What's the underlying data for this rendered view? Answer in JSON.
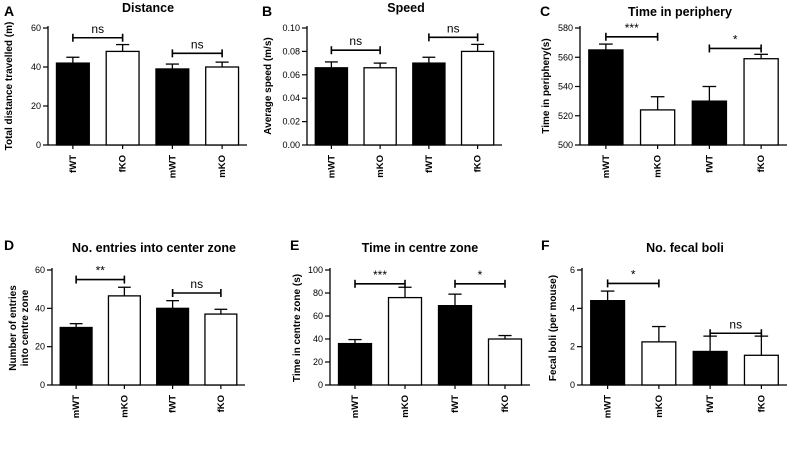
{
  "chart_data": [
    {
      "id": "A",
      "type": "bar",
      "panel_label": "A",
      "title": "Distance",
      "ylabel": "Total distance travelled (m)",
      "ylim": [
        0,
        60
      ],
      "yticks": [
        0,
        20,
        40,
        60
      ],
      "categories": [
        "fWT",
        "fKO",
        "mWT",
        "mKO"
      ],
      "values": [
        42,
        48,
        39,
        40
      ],
      "errors": [
        3,
        3.5,
        2.5,
        2.5
      ],
      "fills": [
        "#000000",
        "#ffffff",
        "#000000",
        "#ffffff"
      ],
      "comparisons": [
        {
          "from": 0,
          "to": 1,
          "y": 55,
          "label": "ns"
        },
        {
          "from": 2,
          "to": 3,
          "y": 47,
          "label": "ns"
        }
      ]
    },
    {
      "id": "B",
      "type": "bar",
      "panel_label": "B",
      "title": "Speed",
      "ylabel": "Average speed (m/s)",
      "ylim": [
        0,
        0.1
      ],
      "yticks": [
        0,
        0.02,
        0.04,
        0.06,
        0.08,
        0.1
      ],
      "tick_decimals": 2,
      "categories": [
        "mWT",
        "mKO",
        "fWT",
        "fKO"
      ],
      "values": [
        0.066,
        0.066,
        0.07,
        0.08
      ],
      "errors": [
        0.005,
        0.004,
        0.005,
        0.006
      ],
      "fills": [
        "#000000",
        "#ffffff",
        "#000000",
        "#ffffff"
      ],
      "comparisons": [
        {
          "from": 0,
          "to": 1,
          "y": 0.081,
          "label": "ns"
        },
        {
          "from": 2,
          "to": 3,
          "y": 0.092,
          "label": "ns"
        }
      ]
    },
    {
      "id": "C",
      "type": "bar",
      "panel_label": "C",
      "title": "Time in periphery",
      "ylabel": "Time in periphery(s)",
      "ylim": [
        500,
        580
      ],
      "yticks": [
        500,
        520,
        540,
        560,
        580
      ],
      "categories": [
        "mWT",
        "mKO",
        "fWT",
        "fKO"
      ],
      "values": [
        565,
        524,
        530,
        559
      ],
      "errors": [
        4,
        9,
        10,
        3
      ],
      "fills": [
        "#000000",
        "#ffffff",
        "#000000",
        "#ffffff"
      ],
      "comparisons": [
        {
          "from": 0,
          "to": 1,
          "y": 574,
          "label": "***"
        },
        {
          "from": 2,
          "to": 3,
          "y": 566,
          "label": "*"
        }
      ]
    },
    {
      "id": "D",
      "type": "bar",
      "panel_label": "D",
      "title": "No. entries into center zone",
      "ylabel": "Number of entries into centre zone",
      "ylim": [
        0,
        60
      ],
      "yticks": [
        0,
        20,
        40,
        60
      ],
      "categories": [
        "mWT",
        "mKO",
        "fWT",
        "fKO"
      ],
      "values": [
        30,
        46.5,
        40,
        37
      ],
      "errors": [
        2,
        4.5,
        4,
        2.5
      ],
      "fills": [
        "#000000",
        "#ffffff",
        "#000000",
        "#ffffff"
      ],
      "comparisons": [
        {
          "from": 0,
          "to": 1,
          "y": 55,
          "label": "**"
        },
        {
          "from": 2,
          "to": 3,
          "y": 48,
          "label": "ns"
        }
      ]
    },
    {
      "id": "E",
      "type": "bar",
      "panel_label": "E",
      "title": "Time in centre zone",
      "ylabel": "Time in centre zone (s)",
      "ylim": [
        0,
        100
      ],
      "yticks": [
        0,
        20,
        40,
        60,
        80,
        100
      ],
      "categories": [
        "mWT",
        "mKO",
        "fWT",
        "fKO"
      ],
      "values": [
        36,
        76,
        69,
        40
      ],
      "errors": [
        3.5,
        9,
        10,
        3
      ],
      "fills": [
        "#000000",
        "#ffffff",
        "#000000",
        "#ffffff"
      ],
      "comparisons": [
        {
          "from": 0,
          "to": 1,
          "y": 88,
          "label": "***"
        },
        {
          "from": 2,
          "to": 3,
          "y": 88,
          "label": "*"
        }
      ]
    },
    {
      "id": "F",
      "type": "bar",
      "panel_label": "F",
      "title": "No. fecal boli",
      "ylabel": "Fecal boli (per mouse)",
      "ylim": [
        0,
        6
      ],
      "yticks": [
        0,
        2,
        4,
        6
      ],
      "categories": [
        "mWT",
        "mKO",
        "fWT",
        "fKO"
      ],
      "values": [
        4.4,
        2.25,
        1.75,
        1.55
      ],
      "errors": [
        0.5,
        0.8,
        0.8,
        1.0
      ],
      "fills": [
        "#000000",
        "#ffffff",
        "#000000",
        "#ffffff"
      ],
      "comparisons": [
        {
          "from": 0,
          "to": 1,
          "y": 5.3,
          "label": "*"
        },
        {
          "from": 2,
          "to": 3,
          "y": 2.7,
          "label": "ns"
        }
      ]
    }
  ]
}
